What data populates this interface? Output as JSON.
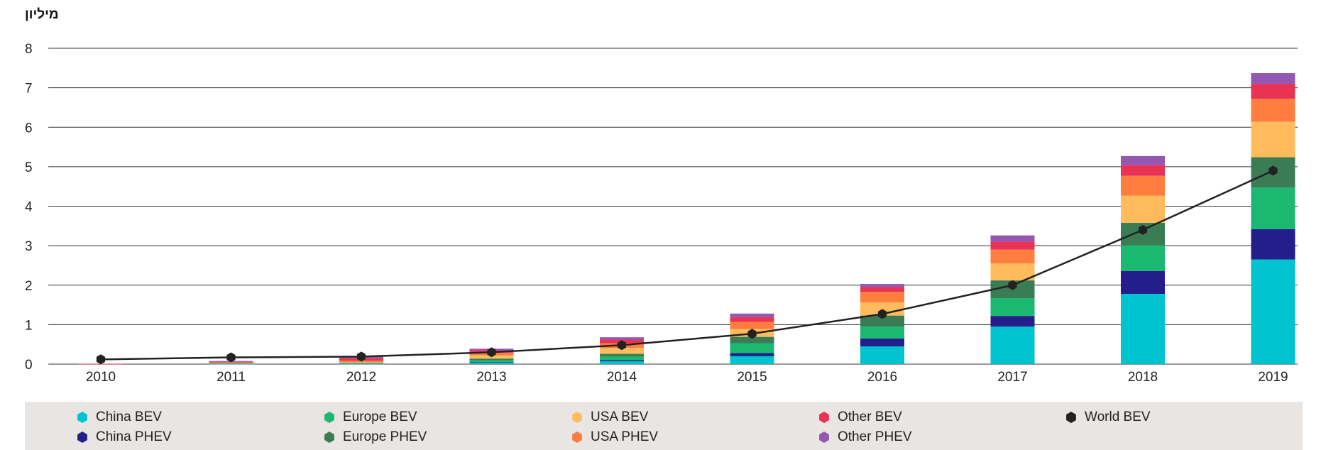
{
  "chart_data": {
    "type": "bar",
    "stacked": true,
    "unit_label": "מיליון",
    "categories": [
      "2010",
      "2011",
      "2012",
      "2013",
      "2014",
      "2015",
      "2016",
      "2017",
      "2018",
      "2019"
    ],
    "ylim": [
      0,
      8
    ],
    "yticks": [
      0,
      1,
      2,
      3,
      4,
      5,
      6,
      7,
      8
    ],
    "grid": true,
    "series": [
      {
        "name": "China BEV",
        "color": "#00c3d0",
        "values": [
          0.0,
          0.01,
          0.01,
          0.04,
          0.07,
          0.2,
          0.45,
          0.95,
          1.78,
          2.65
        ]
      },
      {
        "name": "China PHEV",
        "color": "#231e8c",
        "values": [
          0.0,
          0.0,
          0.0,
          0.01,
          0.03,
          0.08,
          0.2,
          0.27,
          0.58,
          0.77
        ]
      },
      {
        "name": "Europe BEV",
        "color": "#1ab870",
        "values": [
          0.0,
          0.01,
          0.01,
          0.05,
          0.09,
          0.25,
          0.3,
          0.45,
          0.65,
          1.05
        ]
      },
      {
        "name": "Europe PHEV",
        "color": "#3a7d55",
        "values": [
          0.0,
          0.0,
          0.01,
          0.04,
          0.07,
          0.16,
          0.28,
          0.45,
          0.57,
          0.77
        ]
      },
      {
        "name": "USA BEV",
        "color": "#ffbb5c",
        "values": [
          0.0,
          0.01,
          0.02,
          0.08,
          0.15,
          0.2,
          0.33,
          0.43,
          0.69,
          0.9
        ]
      },
      {
        "name": "USA PHEV",
        "color": "#ff7d3e",
        "values": [
          0.0,
          0.01,
          0.04,
          0.07,
          0.12,
          0.18,
          0.27,
          0.35,
          0.5,
          0.58
        ]
      },
      {
        "name": "Other BEV",
        "color": "#e83355",
        "values": [
          0.01,
          0.02,
          0.06,
          0.06,
          0.09,
          0.12,
          0.12,
          0.2,
          0.27,
          0.38
        ]
      },
      {
        "name": "Other PHEV",
        "color": "#9558b2",
        "values": [
          0.0,
          0.02,
          0.05,
          0.04,
          0.06,
          0.09,
          0.08,
          0.16,
          0.23,
          0.27
        ]
      }
    ],
    "line": {
      "name": "World BEV",
      "color": "#222222",
      "values": [
        0.12,
        0.17,
        0.19,
        0.3,
        0.48,
        0.77,
        1.27,
        2.0,
        3.4,
        4.9
      ]
    },
    "legend_position": "bottom"
  }
}
